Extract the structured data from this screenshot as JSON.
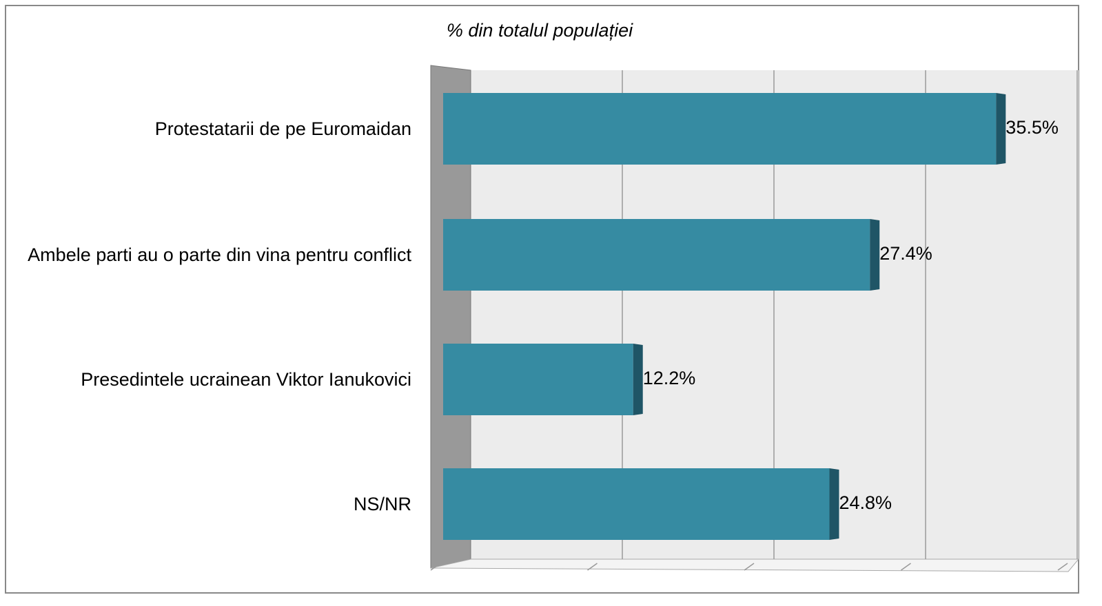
{
  "chart_data": {
    "type": "bar",
    "orientation": "horizontal",
    "title": "% din totalul populației",
    "categories": [
      "Protestatarii de pe Euromaidan",
      "Ambele parti au o parte din vina pentru conflict",
      "Presedintele ucrainean Viktor Ianukovici",
      "NS/NR"
    ],
    "values": [
      35.5,
      27.4,
      12.2,
      24.8
    ],
    "value_labels": [
      "35.5%",
      "27.4%",
      "12.2%",
      "24.8%"
    ],
    "color": "#368ba2",
    "xlim": [
      0,
      40
    ],
    "xticks": [
      0,
      10,
      20,
      30,
      40
    ],
    "grid": true
  }
}
